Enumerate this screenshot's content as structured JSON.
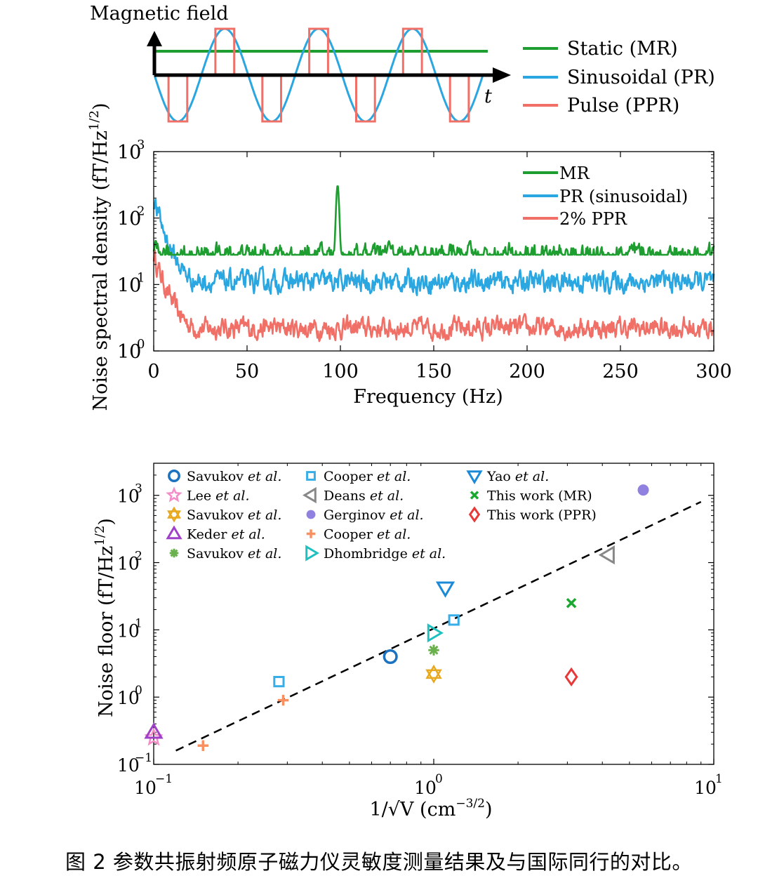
{
  "caption": "图 2 参数共振射频原子磁力仪灵敏度测量结果及与国际同行的对比。",
  "colors": {
    "mr": "#1e9e30",
    "pr": "#2aa6e0",
    "ppr": "#f07068",
    "axis": "#000000"
  },
  "chart_data": [
    {
      "type": "line",
      "title": "",
      "ylabel": "Magnetic field",
      "xlabel": "t",
      "legend_position": "right",
      "series": [
        {
          "name": "Static (MR)",
          "key": "mr",
          "shape": "constant",
          "value": 0.6
        },
        {
          "name": "Sinusoidal (PR)",
          "key": "pr",
          "shape": "sine",
          "cycles": 3.5
        },
        {
          "name": "Pulse (PPR)",
          "key": "ppr",
          "shape": "pulse-train",
          "pulse_fraction": 0.1
        }
      ]
    },
    {
      "type": "line",
      "title": "",
      "xlabel": "Frequency (Hz)",
      "ylabel": "Noise spectral density (fT/Hz",
      "ylabel_exp": "1/2",
      "ylabel_close": ")",
      "xlim": [
        0,
        300
      ],
      "ylim": [
        1,
        1000
      ],
      "yscale": "log",
      "xticks": [
        "0",
        "50",
        "100",
        "150",
        "200",
        "250",
        "300"
      ],
      "yticks": [
        "10",
        "10",
        "10",
        "10"
      ],
      "ytick_exps": [
        "0",
        "1",
        "2",
        "3"
      ],
      "legend_position": "top-right",
      "series": [
        {
          "name": "MR",
          "key": "mr",
          "baseline": 28,
          "peaks": [
            {
              "x": 98.5,
              "y": 310
            },
            {
              "x": 126,
              "y": 45
            }
          ]
        },
        {
          "name": "PR (sinusoidal)",
          "key": "pr",
          "baseline": 11,
          "start": 190,
          "decay_to": 20
        },
        {
          "name": "2% PPR",
          "key": "ppr",
          "baseline": 2.2,
          "start": 28,
          "decay_to": 3
        }
      ]
    },
    {
      "type": "scatter",
      "title": "",
      "xlabel": "1/√V (cm",
      "xlabel_exp": "−3/2",
      "xlabel_close": ")",
      "ylabel": "Noise floor (fT/Hz",
      "ylabel_exp": "1/2",
      "ylabel_close": ")",
      "xscale": "log",
      "yscale": "log",
      "xlim": [
        0.1,
        10
      ],
      "ylim": [
        0.1,
        3000
      ],
      "xticks": [
        "10",
        "10",
        "10"
      ],
      "xtick_exps": [
        "−1",
        "0",
        "1"
      ],
      "yticks": [
        "10",
        "10",
        "10",
        "10",
        "10"
      ],
      "ytick_exps": [
        "−1",
        "0",
        "1",
        "2",
        "3"
      ],
      "legend_position": "top-left",
      "fit_line": {
        "style": "dashed",
        "x": [
          0.12,
          9.0
        ],
        "y": [
          0.16,
          800
        ]
      },
      "series": [
        {
          "name": "Savukov",
          "etal": "et al.",
          "marker": "circle",
          "color": "#1a72c0",
          "x": 0.7,
          "y": 4
        },
        {
          "name": "Lee",
          "etal": "et al.",
          "marker": "star",
          "color": "#f48cc8",
          "x": 0.1,
          "y": 0.25
        },
        {
          "name": "Savukov",
          "etal": "et al.",
          "marker": "hexagram",
          "color": "#e8a820",
          "x": 1.0,
          "y": 2.2
        },
        {
          "name": "Keder",
          "etal": "et al.",
          "marker": "triangle-up",
          "color": "#a040c8",
          "x": 0.1,
          "y": 0.3
        },
        {
          "name": "Savukov",
          "etal": "et al.",
          "marker": "asterisk",
          "color": "#6ab04c",
          "x": 1.0,
          "y": 5
        },
        {
          "name": "Cooper",
          "etal": "et al.",
          "marker": "square",
          "color": "#38aee8",
          "x": [
            0.28,
            1.18
          ],
          "y": [
            1.7,
            14
          ]
        },
        {
          "name": "Deans",
          "etal": "et al.",
          "marker": "triangle-left",
          "color": "#888888",
          "x": 4.2,
          "y": 130
        },
        {
          "name": "Gerginov",
          "etal": "et al.",
          "marker": "filled-circle",
          "color": "#9080e0",
          "x": 5.6,
          "y": 1200
        },
        {
          "name": "Cooper",
          "etal": "et al.",
          "marker": "plus",
          "color": "#f89060",
          "x": [
            0.15,
            0.29
          ],
          "y": [
            0.19,
            0.9
          ]
        },
        {
          "name": "Dhombridge",
          "etal": "et al.",
          "marker": "triangle-right",
          "color": "#20c0c0",
          "x": 1.0,
          "y": 9
        },
        {
          "name": "Yao",
          "etal": "et al.",
          "marker": "triangle-down",
          "color": "#1a8ad8",
          "x": 1.1,
          "y": 42
        },
        {
          "name": "This work (MR)",
          "etal": "",
          "marker": "x",
          "color": "#1aa830",
          "x": 3.1,
          "y": 25
        },
        {
          "name": "This work (PPR)",
          "etal": "",
          "marker": "diamond",
          "color": "#e83838",
          "x": 3.1,
          "y": 2
        }
      ]
    }
  ]
}
